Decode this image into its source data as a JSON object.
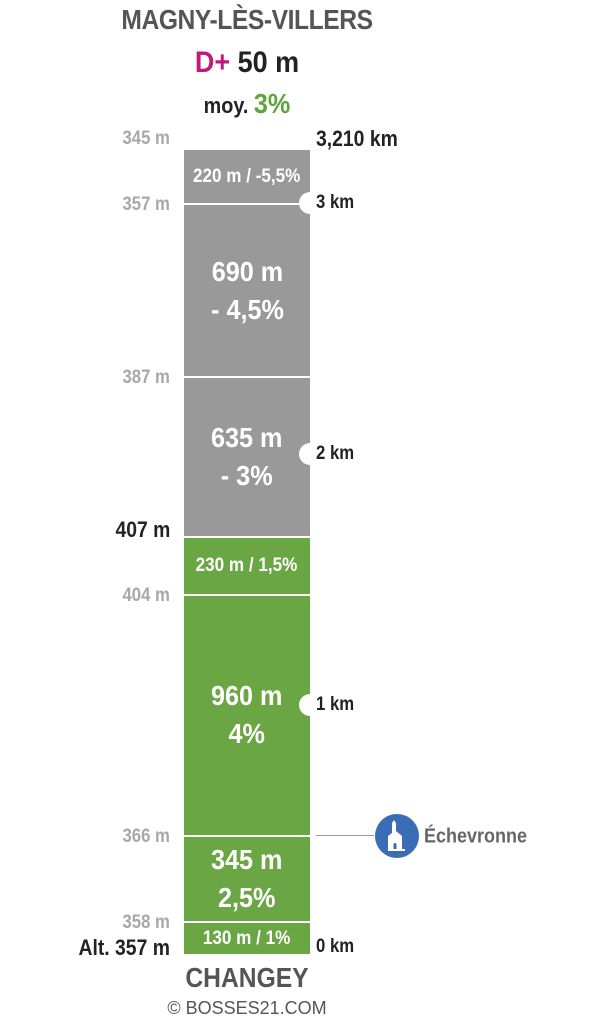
{
  "header": {
    "title": "MAGNY-LÈS-VILLERS",
    "dplus_label": "D+",
    "dplus_value": "50 m",
    "avg_label": "moy.",
    "avg_value": "3%"
  },
  "footer": {
    "start_name": "CHANGEY",
    "copyright": "© BOSSES21.COM"
  },
  "colors": {
    "climb": "#6aa744",
    "descent": "#999999",
    "dplus": "#c2187c",
    "avg": "#5ea63a",
    "poi": "#3a6db5"
  },
  "chart_data": {
    "type": "bar",
    "total_distance_km": 3.21,
    "segments": [
      {
        "order": 1,
        "length_m": 130,
        "gradient_pct": 1,
        "label": "130 m / 1%",
        "label_style": "single",
        "direction": "climb"
      },
      {
        "order": 2,
        "length_m": 345,
        "gradient_pct": 2.5,
        "label_line1": "345 m",
        "label_line2": "2,5%",
        "label_style": "double",
        "direction": "climb"
      },
      {
        "order": 3,
        "length_m": 960,
        "gradient_pct": 4,
        "label_line1": "960 m",
        "label_line2": "4%",
        "label_style": "double",
        "direction": "climb"
      },
      {
        "order": 4,
        "length_m": 230,
        "gradient_pct": 1.5,
        "label": "230 m / 1,5%",
        "label_style": "single",
        "direction": "climb"
      },
      {
        "order": 5,
        "length_m": 635,
        "gradient_pct": -3,
        "label_line1": "635 m",
        "label_line2": "- 3%",
        "label_style": "double",
        "direction": "descent"
      },
      {
        "order": 6,
        "length_m": 690,
        "gradient_pct": -4.5,
        "label_line1": "690 m",
        "label_line2": "- 4,5%",
        "label_style": "double",
        "direction": "descent"
      },
      {
        "order": 7,
        "length_m": 220,
        "gradient_pct": -5.5,
        "label": "220 m / -5,5%",
        "label_style": "single",
        "direction": "descent"
      }
    ],
    "altitudes": [
      {
        "label": "Alt. 357 m",
        "emphasis": true
      },
      {
        "label": "358 m",
        "emphasis": false
      },
      {
        "label": "366 m",
        "emphasis": false
      },
      {
        "label": "404 m",
        "emphasis": false
      },
      {
        "label": "407 m",
        "emphasis": true
      },
      {
        "label": "387 m",
        "emphasis": false
      },
      {
        "label": "357 m",
        "emphasis": false
      },
      {
        "label": "345 m",
        "emphasis": false
      }
    ],
    "km_markers": [
      {
        "km": 0,
        "label": "0 km",
        "emphasis": false
      },
      {
        "km": 1,
        "label": "1 km",
        "emphasis": false
      },
      {
        "km": 2,
        "label": "2 km",
        "emphasis": false
      },
      {
        "km": 3,
        "label": "3 km",
        "emphasis": false
      },
      {
        "km": 3.21,
        "label": "3,210 km",
        "emphasis": true
      }
    ],
    "poi": {
      "label": "Échevronne",
      "icon": "church-icon"
    }
  }
}
